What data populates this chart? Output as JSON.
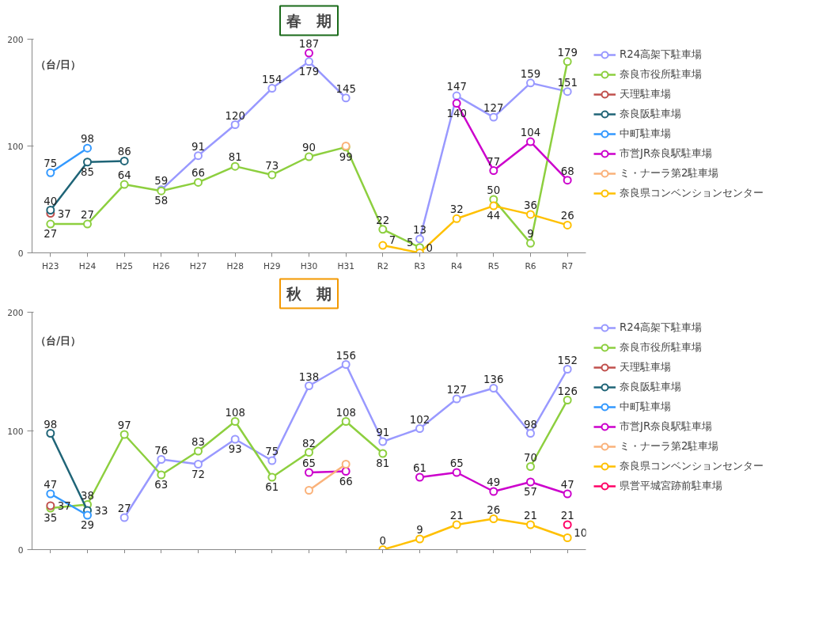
{
  "chart_data": [
    {
      "type": "line",
      "title": "春　期",
      "ylabel": "（台/日）",
      "categories": [
        "H23",
        "H24",
        "H25",
        "H26",
        "H27",
        "H28",
        "H29",
        "H30",
        "H31",
        "R2",
        "R3",
        "R4",
        "R5",
        "R6",
        "R7"
      ],
      "ylim": [
        0,
        200
      ],
      "yticks": [
        0,
        100,
        200
      ],
      "grid": false,
      "legend": "right",
      "marker": "circle",
      "data_labels": true,
      "series": [
        {
          "name": "R24高架下駐車場",
          "color": "#9999ff",
          "values": [
            null,
            null,
            null,
            59,
            91,
            120,
            154,
            179,
            145,
            null,
            13,
            147,
            127,
            159,
            151
          ]
        },
        {
          "name": "奈良市役所駐車場",
          "color": "#8dcf3f",
          "values": [
            27,
            27,
            64,
            58,
            66,
            81,
            73,
            90,
            99,
            22,
            5,
            null,
            50,
            9,
            179
          ]
        },
        {
          "name": "天理駐車場",
          "color": "#c0504d",
          "values": [
            37,
            null,
            null,
            null,
            null,
            null,
            null,
            null,
            null,
            null,
            null,
            null,
            null,
            null,
            null
          ]
        },
        {
          "name": "奈良阪駐車場",
          "color": "#1f6477",
          "values": [
            40,
            85,
            86,
            null,
            null,
            null,
            null,
            null,
            null,
            null,
            null,
            null,
            null,
            null,
            null
          ]
        },
        {
          "name": "中町駐車場",
          "color": "#3399ff",
          "values": [
            75,
            98,
            null,
            null,
            null,
            null,
            null,
            null,
            null,
            null,
            null,
            null,
            null,
            null,
            null
          ]
        },
        {
          "name": "市営JR奈良駅駐車場",
          "color": "#cc00cc",
          "values": [
            null,
            null,
            null,
            null,
            null,
            null,
            null,
            187,
            null,
            null,
            null,
            140,
            77,
            104,
            68
          ]
        },
        {
          "name": "ミ・ナーラ第2駐車場",
          "color": "#fab27a",
          "values": [
            null,
            null,
            null,
            null,
            null,
            null,
            null,
            null,
            100,
            null,
            null,
            null,
            null,
            null,
            null
          ],
          "value_labels": [
            null,
            null,
            null,
            null,
            null,
            null,
            null,
            null,
            null,
            null,
            null,
            null,
            null,
            null,
            null
          ]
        },
        {
          "name": "奈良県コンベンションセンター",
          "color": "#ffc000",
          "values": [
            null,
            null,
            null,
            null,
            null,
            null,
            null,
            null,
            null,
            7,
            0,
            32,
            44,
            36,
            26
          ]
        }
      ]
    },
    {
      "type": "line",
      "title": "秋　期",
      "ylabel": "（台/日）",
      "categories": [
        null,
        null,
        null,
        null,
        null,
        null,
        null,
        null,
        null,
        null,
        null,
        null,
        null,
        null,
        null
      ],
      "ylim": [
        0,
        200
      ],
      "yticks": [
        0,
        100,
        200
      ],
      "grid": false,
      "legend": "right",
      "marker": "circle",
      "data_labels": true,
      "series": [
        {
          "name": "R24高架下駐車場",
          "color": "#9999ff",
          "values": [
            null,
            null,
            27,
            76,
            72,
            93,
            75,
            138,
            156,
            91,
            102,
            127,
            136,
            98,
            152
          ]
        },
        {
          "name": "奈良市役所駐車場",
          "color": "#8dcf3f",
          "values": [
            35,
            38,
            97,
            63,
            83,
            108,
            61,
            82,
            108,
            81,
            null,
            null,
            null,
            70,
            126
          ]
        },
        {
          "name": "天理駐車場",
          "color": "#c0504d",
          "values": [
            37,
            null,
            null,
            null,
            null,
            null,
            null,
            null,
            null,
            null,
            null,
            null,
            null,
            null,
            null
          ]
        },
        {
          "name": "奈良阪駐車場",
          "color": "#1f6477",
          "values": [
            98,
            33,
            null,
            null,
            null,
            null,
            null,
            null,
            null,
            null,
            null,
            null,
            null,
            null,
            null
          ]
        },
        {
          "name": "中町駐車場",
          "color": "#3399ff",
          "values": [
            47,
            29,
            null,
            null,
            null,
            null,
            null,
            null,
            null,
            null,
            null,
            null,
            null,
            null,
            null
          ]
        },
        {
          "name": "市営JR奈良駅駐車場",
          "color": "#cc00cc",
          "values": [
            null,
            null,
            null,
            null,
            null,
            null,
            null,
            65,
            66,
            null,
            61,
            65,
            49,
            57,
            47
          ]
        },
        {
          "name": "ミ・ナーラ第2駐車場",
          "color": "#fab27a",
          "values": [
            null,
            null,
            null,
            null,
            null,
            null,
            null,
            50,
            72,
            null,
            null,
            null,
            null,
            null,
            null
          ],
          "value_labels": [
            null,
            null,
            null,
            null,
            null,
            null,
            null,
            null,
            null,
            null,
            null,
            null,
            null,
            null,
            null
          ]
        },
        {
          "name": "奈良県コンベンションセンター",
          "color": "#ffc000",
          "values": [
            null,
            null,
            null,
            null,
            null,
            null,
            null,
            null,
            null,
            0,
            9,
            21,
            26,
            21,
            10
          ]
        },
        {
          "name": "県営平城宮跡前駐車場",
          "color": "#ff0066",
          "values": [
            null,
            null,
            null,
            null,
            null,
            null,
            null,
            null,
            null,
            null,
            null,
            null,
            null,
            null,
            21
          ]
        }
      ]
    }
  ]
}
